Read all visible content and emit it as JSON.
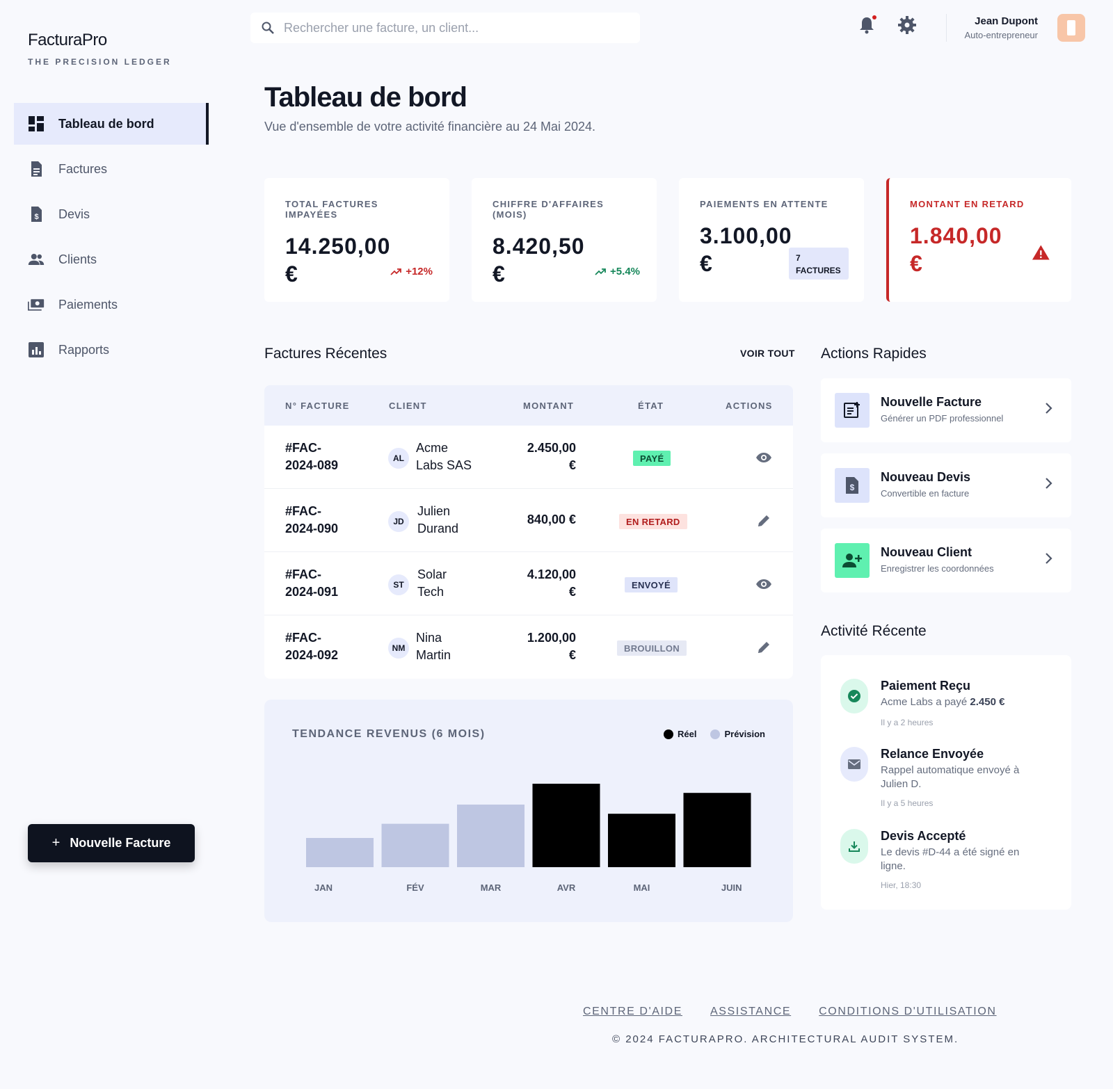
{
  "app": {
    "name": "FacturaPro",
    "tagline": "THE PRECISION LEDGER"
  },
  "sidebar": {
    "items": [
      {
        "label": "Tableau de bord",
        "icon": "dashboard-icon",
        "active": true
      },
      {
        "label": "Factures",
        "icon": "document-icon"
      },
      {
        "label": "Devis",
        "icon": "quote-icon"
      },
      {
        "label": "Clients",
        "icon": "people-icon"
      },
      {
        "label": "Paiements",
        "icon": "payments-icon"
      },
      {
        "label": "Rapports",
        "icon": "chart-icon"
      }
    ],
    "new_invoice_plus": "+",
    "new_invoice_label": "Nouvelle Facture"
  },
  "topbar": {
    "search_placeholder": "Rechercher une facture, un client...",
    "user_name": "Jean Dupont",
    "user_role": "Auto-entrepreneur"
  },
  "header": {
    "title": "Tableau de bord",
    "subtitle": "Vue d'ensemble de votre activité financière au 24 Mai 2024."
  },
  "kpis": [
    {
      "label": "TOTAL FACTURES IMPAYÉES",
      "value_line1": "14.250,00",
      "value_line2": "€",
      "trend": "+12%"
    },
    {
      "label": "CHIFFRE D'AFFAIRES (MOIS)",
      "value_line1": "8.420,50",
      "value_line2": "€",
      "trend": "+5.4%"
    },
    {
      "label": "PAIEMENTS EN ATTENTE",
      "value_line1": "3.100,00",
      "value_line2": "€",
      "badge_line1": "7",
      "badge_line2": "FACTURES"
    },
    {
      "label": "MONTANT EN RETARD",
      "value_line1": "1.840,00 €"
    }
  ],
  "invoices": {
    "title": "Factures Récentes",
    "see_all": "VOIR TOUT",
    "columns": [
      "N° FACTURE",
      "CLIENT",
      "MONTANT",
      "ÉTAT",
      "ACTIONS"
    ],
    "rows": [
      {
        "id1": "#FAC-",
        "id2": "2024-089",
        "initials": "AL",
        "client1": "Acme",
        "client2": "Labs SAS",
        "amount1": "2.450,00",
        "amount2": "€",
        "status": "PAYÉ",
        "action": "eye-icon"
      },
      {
        "id1": "#FAC-",
        "id2": "2024-090",
        "initials": "JD",
        "client1": "Julien",
        "client2": "Durand",
        "amount1": "840,00 €",
        "amount2": "",
        "status": "EN RETARD",
        "action": "pencil-icon"
      },
      {
        "id1": "#FAC-",
        "id2": "2024-091",
        "initials": "ST",
        "client1": "Solar",
        "client2": "Tech",
        "amount1": "4.120,00",
        "amount2": "€",
        "status": "ENVOYÉ",
        "action": "eye-icon"
      },
      {
        "id1": "#FAC-",
        "id2": "2024-092",
        "initials": "NM",
        "client1": "Nina",
        "client2": "Martin",
        "amount1": "1.200,00",
        "amount2": "€",
        "status": "BROUILLON",
        "action": "pencil-icon"
      }
    ]
  },
  "chart_data": {
    "type": "bar",
    "title": "TENDANCE REVENUS (6 MOIS)",
    "categories": [
      "JAN",
      "FÉV",
      "MAR",
      "AVR",
      "MAI",
      "JUIN"
    ],
    "values": [
      35,
      52,
      75,
      100,
      64,
      89
    ],
    "series_kind": [
      "Prévision",
      "Prévision",
      "Prévision",
      "Réel",
      "Réel",
      "Réel"
    ],
    "legend": [
      "Réel",
      "Prévision"
    ],
    "colors": {
      "Réel": "#000000",
      "Prévision": "#bec6e2"
    },
    "ylim": [
      0,
      100
    ],
    "grid": false,
    "legend_position": "top-right"
  },
  "quick_actions": {
    "title": "Actions Rapides",
    "items": [
      {
        "title": "Nouvelle Facture",
        "subtitle": "Générer un PDF professionnel",
        "icon": "new-invoice-icon"
      },
      {
        "title": "Nouveau Devis",
        "subtitle": "Convertible en facture",
        "icon": "quote-icon"
      },
      {
        "title": "Nouveau Client",
        "subtitle": "Enregistrer les coordonnées",
        "icon": "add-person-icon"
      }
    ]
  },
  "activity": {
    "title": "Activité Récente",
    "items": [
      {
        "title": "Paiement Reçu",
        "desc_prefix": "Acme Labs a payé ",
        "desc_strong": "2.450 €",
        "time": "Il y a 2 heures",
        "icon": "check-icon"
      },
      {
        "title": "Relance Envoyée",
        "desc_prefix": "Rappel automatique envoyé à Julien D.",
        "desc_strong": "",
        "time": "Il y a 5 heures",
        "icon": "mail-icon"
      },
      {
        "title": "Devis Accepté",
        "desc_prefix": "Le devis #D-44 a été signé en ligne.",
        "desc_strong": "",
        "time": "Hier, 18:30",
        "icon": "download-icon"
      }
    ]
  },
  "footer": {
    "links": [
      "CENTRE D'AIDE",
      "ASSISTANCE",
      "CONDITIONS D'UTILISATION"
    ],
    "copyright": "© 2024 FACTURAPRO. ARCHITECTURAL AUDIT SYSTEM."
  }
}
